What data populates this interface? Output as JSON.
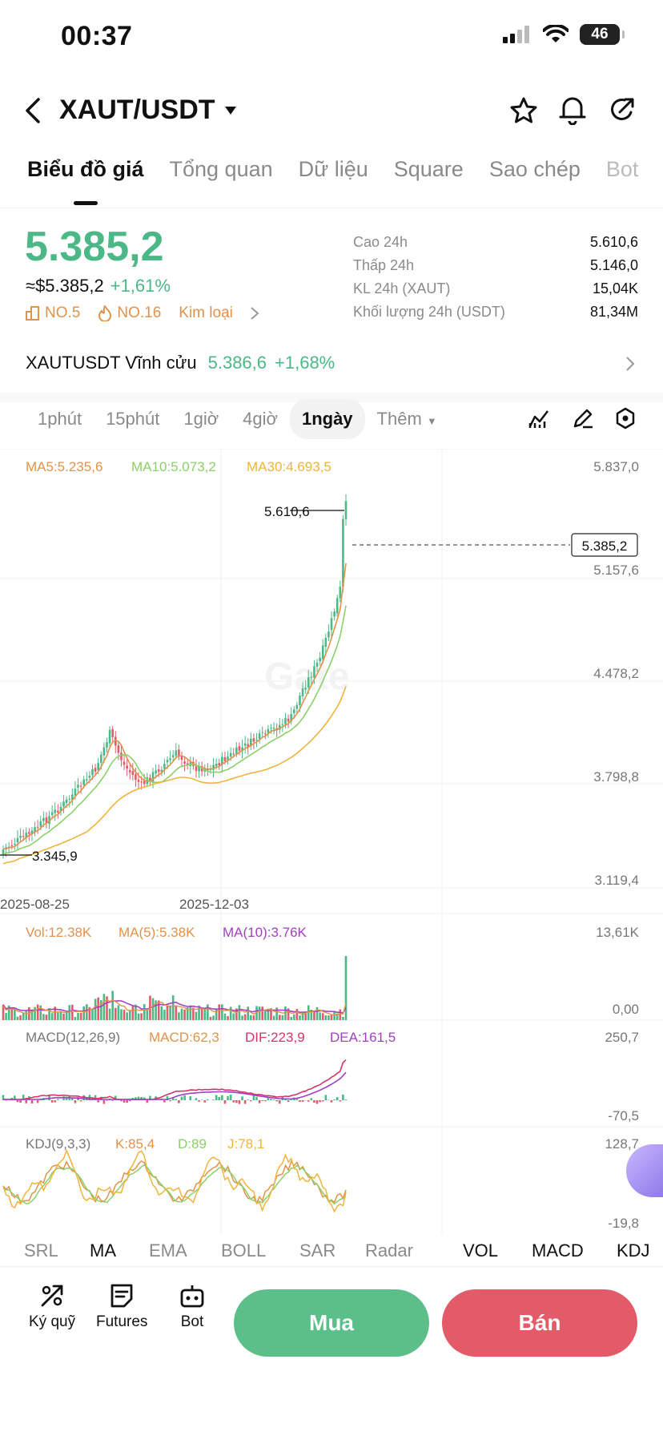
{
  "status": {
    "time": "00:37",
    "battery": "46"
  },
  "header": {
    "pair": "XAUT/USDT"
  },
  "tabs": [
    "Biểu đồ giá",
    "Tổng quan",
    "Dữ liệu",
    "Square",
    "Sao chép",
    "Bot"
  ],
  "price": {
    "last": "5.385,2",
    "usd": "≈$5.385,2",
    "change": "+1,61%",
    "rank1": "NO.5",
    "rank2": "NO.16",
    "category": "Kim loại"
  },
  "stats": [
    {
      "label": "Cao 24h",
      "value": "5.610,6"
    },
    {
      "label": "Thấp 24h",
      "value": "5.146,0"
    },
    {
      "label": "KL 24h (XAUT)",
      "value": "15,04K"
    },
    {
      "label": "Khối lượng 24h (USDT)",
      "value": "81,34M"
    }
  ],
  "perpetual": {
    "name": "XAUTUSDT Vĩnh cửu",
    "price": "5.386,6",
    "change": "+1,68%"
  },
  "timeframes": [
    "1phút",
    "15phút",
    "1giờ",
    "4giờ",
    "1ngày",
    "Thêm"
  ],
  "active_timeframe": "1ngày",
  "main_chart": {
    "ma5": "MA5:5.235,6",
    "ma10": "MA10:5.073,2",
    "ma30": "MA30:4.693,5",
    "y_ticks": [
      "5.837,0",
      "5.157,6",
      "4.478,2",
      "3.798,8",
      "3.119,4"
    ],
    "high_marker": "5.610,6",
    "low_marker": "3.345,9",
    "current_price_tag": "5.385,2",
    "x_ticks": [
      "2025-08-25",
      "2025-12-03"
    ],
    "watermark": "Gate"
  },
  "vol_panel": {
    "vol": "Vol:12.38K",
    "ma5": "MA(5):5.38K",
    "ma10": "MA(10):3.76K",
    "y_top": "13,61K",
    "y_bottom": "0,00"
  },
  "macd_panel": {
    "name": "MACD(12,26,9)",
    "macd": "MACD:62,3",
    "dif": "DIF:223,9",
    "dea": "DEA:161,5",
    "y_top": "250,7",
    "y_bottom": "-70,5"
  },
  "kdj_panel": {
    "name": "KDJ(9,3,3)",
    "k": "K:85,4",
    "d": "D:89",
    "j": "J:78,1",
    "y_top": "128,7",
    "y_bottom": "-19,8"
  },
  "indicator_tabs": [
    "SRL",
    "MA",
    "EMA",
    "BOLL",
    "SAR",
    "Radar",
    "VOL",
    "MACD",
    "KDJ"
  ],
  "bottom_bar": {
    "margin": "Ký quỹ",
    "futures": "Futures",
    "bot": "Bot",
    "buy": "Mua",
    "sell": "Bán"
  },
  "colors": {
    "up": "#4cb887",
    "down": "#e35a68",
    "ma5": "#e2924a",
    "ma10": "#8bd16a",
    "ma30": "#f0b43c"
  }
}
